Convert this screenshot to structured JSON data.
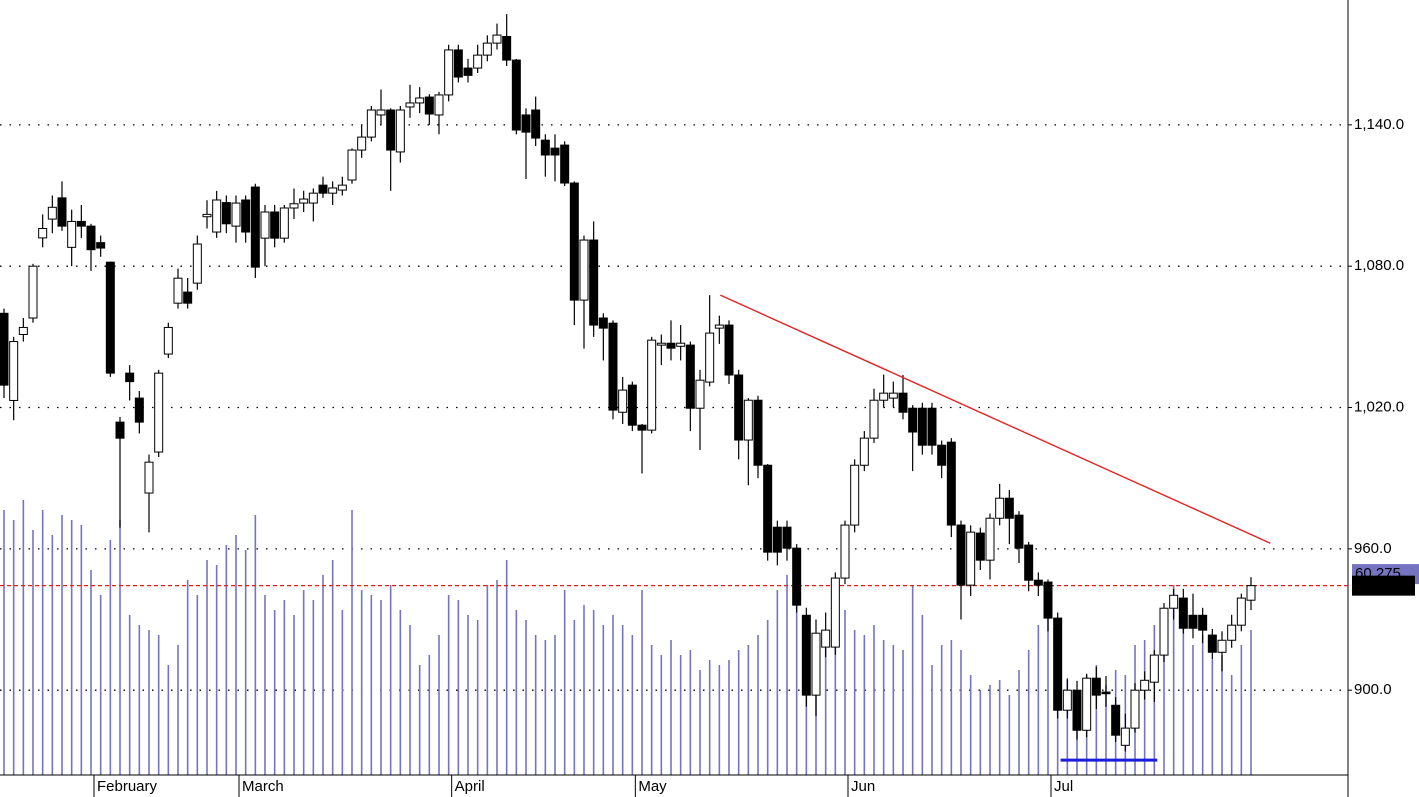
{
  "chart_data": {
    "type": "candlestick",
    "categories": [
      null,
      null,
      null,
      null,
      null,
      null,
      null,
      null,
      null,
      "February",
      null,
      null,
      null,
      null,
      null,
      null,
      null,
      null,
      null,
      null,
      null,
      null,
      null,
      null,
      "March",
      null,
      null,
      null,
      null,
      null,
      null,
      null,
      null,
      null,
      null,
      null,
      null,
      null,
      null,
      null,
      null,
      null,
      null,
      null,
      null,
      null,
      "April",
      null,
      null,
      null,
      null,
      null,
      null,
      null,
      null,
      null,
      null,
      null,
      null,
      null,
      null,
      null,
      null,
      null,
      null,
      "May",
      null,
      null,
      null,
      null,
      null,
      null,
      null,
      null,
      null,
      null,
      null,
      null,
      null,
      null,
      null,
      null,
      null,
      null,
      null,
      null,
      null,
      "Jun",
      null,
      null,
      null,
      null,
      null,
      null,
      null,
      null,
      null,
      null,
      null,
      null,
      null,
      null,
      null,
      null,
      null,
      null,
      null,
      null,
      "Jul",
      null,
      null,
      null,
      null,
      null,
      null,
      null,
      null,
      null,
      null,
      null,
      null,
      null,
      null,
      null,
      null,
      null,
      null,
      null,
      null,
      null
    ],
    "open": [
      1060,
      1023,
      1051,
      1058,
      1092,
      1100,
      1109,
      1088,
      1099,
      1097,
      1090,
      1081.7,
      1013.8,
      1034.6,
      1024,
      983.7,
      1001.1,
      1042.7,
      1064.3,
      1069,
      1072.8,
      1101,
      1094.5,
      1107,
      1097,
      1108.1,
      1113.6,
      1091.9,
      1103,
      1091.9,
      1104.7,
      1106.8,
      1106.8,
      1114.4,
      1111,
      1112.3,
      1116.6,
      1129.3,
      1134.8,
      1144.2,
      1146.3,
      1128.5,
      1147.6,
      1149.3,
      1151.8,
      1144.2,
      1152.7,
      1171.8,
      1164.1,
      1164.1,
      1169.6,
      1174.7,
      1177.5,
      1167.5,
      1144.2,
      1146.3,
      1133.5,
      1130.1,
      1131.4,
      1115.3,
      1065.6,
      1091.1,
      1058,
      1055.8,
      1018,
      1029.5,
      1012.5,
      1010.4,
      1046.5,
      1047.3,
      1046,
      1046.5,
      1019.7,
      1030.8,
      1053.7,
      1055,
      1033.8,
      1006.2,
      1023.1,
      995.5,
      969.2,
      969.2,
      960.3,
      931.8,
      897.9,
      918.3,
      918.3,
      947.6,
      970.1,
      995.5,
      1007,
      1023.1,
      1024,
      1026.1,
      1019.7,
      1019.7,
      1019.7,
      1004,
      1005.3,
      970.1,
      944.6,
      966.7,
      955.2,
      973,
      981.5,
      974.3,
      961.6,
      946.7,
      945.9,
      930.6,
      891.5,
      900,
      883,
      905.1,
      899.2,
      893.6,
      876.6,
      883.9,
      900,
      903.4,
      914.9,
      934.8,
      939.1,
      931.8,
      931.8,
      923.4,
      916.1,
      921.2,
      927.6,
      938.2
    ],
    "high": [
      1062,
      1050,
      1058,
      1081,
      1102,
      1110,
      1116,
      1104,
      1106,
      1098,
      1093,
      1082,
      1016,
      1038,
      1027,
      1000,
      1036,
      1056,
      1079,
      1075,
      1093,
      1108,
      1112,
      1110,
      1110,
      1110,
      1115,
      1106,
      1106,
      1106,
      1113,
      1112,
      1113,
      1118,
      1116,
      1118,
      1130,
      1140,
      1148,
      1155,
      1147,
      1148,
      1157,
      1156,
      1153,
      1154,
      1174,
      1174,
      1168,
      1174,
      1178,
      1183,
      1187,
      1168,
      1147,
      1152,
      1136,
      1136,
      1133,
      1116,
      1093,
      1099,
      1060,
      1057,
      1033,
      1031,
      1013,
      1050,
      1051,
      1057,
      1055,
      1048,
      1036,
      1067.7,
      1059,
      1057,
      1036,
      1024,
      1025,
      996,
      972,
      972,
      962,
      935,
      930,
      933,
      950,
      972,
      998,
      1010,
      1028,
      1034,
      1031,
      1033.8,
      1021,
      1022,
      1022,
      1006,
      1007,
      972,
      970,
      969,
      975,
      987.6,
      985,
      976,
      963,
      950,
      947,
      933,
      905,
      904,
      907,
      910,
      906,
      897,
      890,
      903,
      908,
      917,
      937,
      943,
      943,
      941,
      935,
      926,
      925,
      932,
      941,
      948
    ],
    "low": [
      1024,
      1014.6,
      1048,
      1056,
      1088,
      1094,
      1095,
      1080,
      1092,
      1078,
      1084,
      1033,
      969,
      1023,
      1009,
      967,
      999,
      1041,
      1062,
      1062,
      1070,
      1096,
      1092,
      1094,
      1090,
      1090,
      1075,
      1080,
      1088,
      1090,
      1100,
      1103,
      1099,
      1109,
      1106,
      1110,
      1115,
      1126,
      1133,
      1140,
      1112,
      1124,
      1143,
      1145,
      1140,
      1136,
      1150,
      1158,
      1158,
      1162,
      1167,
      1172,
      1165,
      1136,
      1117,
      1131,
      1118,
      1116,
      1114,
      1055,
      1045,
      1050,
      1040,
      1015,
      1013,
      1010,
      992,
      1009,
      1038,
      1040,
      1040,
      1010,
      1002,
      1029,
      1047,
      1030,
      998,
      987,
      990,
      955,
      953,
      955,
      933,
      893,
      889,
      914,
      915,
      945,
      967,
      993,
      1005,
      1020,
      1020,
      1015,
      993,
      1000,
      1000,
      990,
      965,
      930,
      940,
      951,
      947,
      970,
      962,
      954,
      942,
      940,
      925,
      888,
      888,
      879,
      880,
      892,
      893,
      878,
      874,
      882,
      896,
      895,
      912,
      930,
      924,
      922,
      920,
      913,
      908,
      918,
      925,
      934
    ],
    "close": [
      1029.5,
      1048,
      1054,
      1080,
      1096,
      1105,
      1097,
      1099,
      1097,
      1087,
      1087.7,
      1034.6,
      1007,
      1031,
      1013.8,
      996.8,
      1034.6,
      1054,
      1074.9,
      1064.3,
      1089.4,
      1102,
      1108.1,
      1098,
      1106.8,
      1094.5,
      1079.6,
      1103,
      1091.9,
      1104.7,
      1106.5,
      1108.5,
      1111,
      1111,
      1113.2,
      1114.4,
      1129.3,
      1134.8,
      1146.3,
      1146.3,
      1129.3,
      1146.3,
      1149.3,
      1151.4,
      1144.6,
      1152.7,
      1171.8,
      1160.3,
      1161,
      1169.6,
      1174.7,
      1178.1,
      1167.5,
      1137.8,
      1136.9,
      1134.4,
      1127.2,
      1127.2,
      1115.3,
      1065.6,
      1091.1,
      1055,
      1053.7,
      1018.9,
      1027.4,
      1012.5,
      1010.4,
      1048.6,
      1047.3,
      1045.2,
      1047.3,
      1019.7,
      1031.6,
      1051.6,
      1055,
      1033.8,
      1006.2,
      1023.1,
      995.5,
      958.6,
      958.6,
      960.3,
      936.1,
      897.9,
      924.2,
      925.5,
      947.6,
      970.1,
      995.5,
      1007,
      1023.1,
      1026.1,
      1026.1,
      1018,
      1009.6,
      1004,
      1004,
      995.5,
      970.1,
      944.6,
      967.1,
      955.2,
      973,
      981.5,
      973,
      960.3,
      946.7,
      944.6,
      930.6,
      891.5,
      900,
      883,
      905.1,
      897.9,
      898.5,
      880.9,
      883.9,
      900,
      904.2,
      914.9,
      934.8,
      940.3,
      926.3,
      926.3,
      925.5,
      916.1,
      921.2,
      927.6,
      939.1,
      944.38
    ],
    "volume": [
      79500,
      76500,
      82500,
      73500,
      79500,
      72000,
      78000,
      76500,
      75000,
      61500,
      54000,
      70500,
      76500,
      48000,
      45000,
      43500,
      42000,
      33000,
      39000,
      58500,
      54000,
      64500,
      63000,
      69000,
      72000,
      67500,
      78000,
      54000,
      49500,
      52500,
      48000,
      55500,
      52500,
      60000,
      64500,
      49500,
      79500,
      55500,
      54000,
      52500,
      57000,
      49500,
      45000,
      33000,
      36000,
      42000,
      54000,
      52500,
      48000,
      46500,
      57000,
      58500,
      64500,
      49500,
      46500,
      42000,
      40500,
      42000,
      55500,
      46500,
      51000,
      49500,
      45000,
      48000,
      45000,
      42000,
      55500,
      39000,
      36000,
      40500,
      36000,
      37500,
      31500,
      34500,
      33000,
      34500,
      37500,
      39000,
      42000,
      46500,
      55500,
      60000,
      51000,
      45000,
      36000,
      42000,
      46500,
      49500,
      43500,
      42000,
      45000,
      40500,
      39000,
      37500,
      57000,
      48000,
      33000,
      39000,
      40500,
      37500,
      30000,
      25500,
      27000,
      28500,
      24000,
      31500,
      37500,
      45000,
      52500,
      34500,
      28500,
      25500,
      30000,
      33000,
      27000,
      31500,
      30000,
      39000,
      40500,
      45000,
      48000,
      57000,
      45000,
      39000,
      42000,
      34500,
      36000,
      30000,
      39000,
      43500
    ],
    "up_color": "#ffffff",
    "down_color": "#000000",
    "volume_color": "#7474c0",
    "vlim": [
      0,
      232500
    ],
    "volume_tag": {
      "value": 60275,
      "label": "60,275,"
    },
    "close_tag": "944.38",
    "ylim": [
      864,
      1193
    ],
    "yticks": [
      {
        "value": 900,
        "label": "900.0"
      },
      {
        "value": 960,
        "label": "960.0"
      },
      {
        "value": 1020,
        "label": "1,020.0"
      },
      {
        "value": 1080,
        "label": "1,080.0"
      },
      {
        "value": 1140,
        "label": "1,140.0"
      }
    ],
    "grid": true,
    "trendline": {
      "color": "#e82020",
      "x": [
        74.1,
        131
      ],
      "values": [
        1067.7,
        962.4
      ]
    },
    "support_line": {
      "color": "#1c1cdc",
      "x": [
        109.3,
        119.3
      ],
      "values": [
        870.3,
        870.3
      ]
    },
    "last_price_line_color": "#e02020"
  }
}
